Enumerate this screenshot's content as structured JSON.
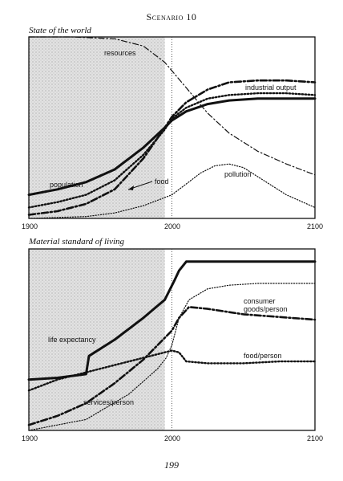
{
  "page": {
    "heading": "Scenario 10",
    "page_number": "199"
  },
  "chart_data": [
    {
      "type": "line",
      "title": "State of the world",
      "x_ticks": [
        "1900",
        "2000",
        "2100"
      ],
      "xlim": [
        1900,
        2100
      ],
      "ylim": [
        0,
        1
      ],
      "shaded_period": [
        1900,
        1995
      ],
      "reference_line_x": 2000,
      "series": [
        {
          "name": "resources",
          "style": "dash-dot",
          "x": [
            1900,
            1930,
            1960,
            1980,
            1995,
            2010,
            2025,
            2040,
            2060,
            2080,
            2100
          ],
          "y": [
            1.0,
            1.0,
            0.99,
            0.95,
            0.86,
            0.72,
            0.58,
            0.47,
            0.37,
            0.3,
            0.24
          ]
        },
        {
          "name": "industrial output",
          "style": "heavy-dash-dot",
          "x": [
            1900,
            1920,
            1940,
            1960,
            1980,
            1995,
            2000,
            2010,
            2025,
            2040,
            2060,
            2080,
            2100
          ],
          "y": [
            0.02,
            0.04,
            0.08,
            0.16,
            0.33,
            0.5,
            0.56,
            0.64,
            0.71,
            0.75,
            0.76,
            0.76,
            0.75
          ]
        },
        {
          "name": "population",
          "style": "solid",
          "x": [
            1900,
            1920,
            1940,
            1960,
            1980,
            1995,
            2000,
            2010,
            2025,
            2040,
            2060,
            2080,
            2100
          ],
          "y": [
            0.13,
            0.16,
            0.2,
            0.27,
            0.39,
            0.5,
            0.54,
            0.59,
            0.63,
            0.65,
            0.66,
            0.66,
            0.66
          ]
        },
        {
          "name": "food",
          "style": "heavy-dot",
          "x": [
            1900,
            1920,
            1940,
            1960,
            1980,
            1995,
            2000,
            2010,
            2025,
            2040,
            2060,
            2080,
            2100
          ],
          "y": [
            0.06,
            0.09,
            0.13,
            0.21,
            0.35,
            0.49,
            0.55,
            0.61,
            0.66,
            0.68,
            0.69,
            0.69,
            0.68
          ]
        },
        {
          "name": "pollution",
          "style": "light-dot",
          "x": [
            1900,
            1940,
            1960,
            1980,
            2000,
            2010,
            2020,
            2030,
            2040,
            2050,
            2060,
            2080,
            2100
          ],
          "y": [
            0.0,
            0.01,
            0.03,
            0.07,
            0.13,
            0.19,
            0.25,
            0.29,
            0.3,
            0.28,
            0.23,
            0.13,
            0.06
          ]
        }
      ]
    },
    {
      "type": "line",
      "title": "Material standard of living",
      "x_ticks": [
        "1900",
        "2000",
        "2100"
      ],
      "xlim": [
        1900,
        2100
      ],
      "ylim": [
        0,
        1
      ],
      "shaded_period": [
        1900,
        1995
      ],
      "reference_line_x": 2000,
      "series": [
        {
          "name": "life expectancy",
          "style": "solid",
          "x": [
            1900,
            1920,
            1940,
            1942,
            1960,
            1980,
            1995,
            2002,
            2005,
            2010,
            2030,
            2060,
            2100
          ],
          "y": [
            0.28,
            0.29,
            0.31,
            0.41,
            0.5,
            0.62,
            0.72,
            0.83,
            0.88,
            0.93,
            0.93,
            0.93,
            0.93
          ]
        },
        {
          "name": "consumer goods/person",
          "style": "light-dot",
          "x": [
            1900,
            1940,
            1970,
            1990,
            1996,
            2000,
            2005,
            2012,
            2025,
            2040,
            2060,
            2100
          ],
          "y": [
            0.0,
            0.06,
            0.2,
            0.34,
            0.4,
            0.47,
            0.62,
            0.72,
            0.78,
            0.8,
            0.81,
            0.81
          ]
        },
        {
          "name": "services/person",
          "style": "heavy-dash-dot",
          "x": [
            1900,
            1920,
            1940,
            1960,
            1980,
            1995,
            2000,
            2005,
            2012,
            2025,
            2050,
            2100
          ],
          "y": [
            0.03,
            0.08,
            0.15,
            0.26,
            0.39,
            0.51,
            0.55,
            0.62,
            0.68,
            0.67,
            0.64,
            0.61
          ]
        },
        {
          "name": "food/person",
          "style": "heavy-dot",
          "x": [
            1900,
            1920,
            1940,
            1960,
            1980,
            1995,
            2000,
            2005,
            2010,
            2025,
            2050,
            2075,
            2100
          ],
          "y": [
            0.22,
            0.28,
            0.32,
            0.36,
            0.4,
            0.43,
            0.44,
            0.43,
            0.38,
            0.37,
            0.37,
            0.38,
            0.38
          ]
        }
      ]
    }
  ],
  "labels": {
    "resources": "resources",
    "industrial_output": "industrial output",
    "population": "population",
    "food": "food",
    "pollution": "pollution",
    "life_expectancy": "life expectancy",
    "consumer_goods_1": "consumer",
    "consumer_goods_2": "goods/person",
    "food_person": "food/person",
    "services_person": "services/person"
  }
}
